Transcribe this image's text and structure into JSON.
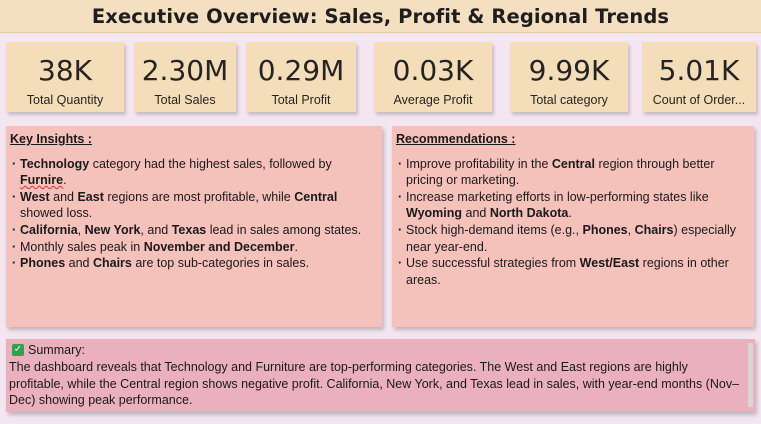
{
  "title": "Executive Overview: Sales, Profit & Regional Trends",
  "kpis": [
    {
      "value": "38K",
      "label": "Total Quantity"
    },
    {
      "value": "2.30M",
      "label": "Total Sales"
    },
    {
      "value": "0.29M",
      "label": "Total Profit"
    },
    {
      "value": "0.03K",
      "label": "Average Profit"
    },
    {
      "value": "9.99K",
      "label": "Total category"
    },
    {
      "value": "5.01K",
      "label": "Count of Order..."
    }
  ],
  "insights": {
    "heading": "Key Insights :",
    "items": [
      [
        "Technology",
        " category had the highest sales, followed by ",
        "Furnire",
        "."
      ],
      [
        "West",
        " and ",
        "East",
        " regions are most profitable, while ",
        "Central",
        " showed loss."
      ],
      [
        "California",
        ", ",
        "New York",
        ", and ",
        "Texas",
        " lead in sales among states."
      ],
      [
        "Monthly sales peak in ",
        "November and December",
        "."
      ],
      [
        "Phones",
        " and ",
        "Chairs",
        " are top sub-categories in sales."
      ]
    ]
  },
  "recommendations": {
    "heading": "Recommendations :",
    "items": [
      [
        "Improve profitability in the ",
        "Central",
        " region through better pricing or marketing."
      ],
      [
        "Increase marketing efforts in low-performing states like ",
        "Wyoming",
        " and ",
        "North Dakota",
        "."
      ],
      [
        "Stock high-demand items (e.g., ",
        "Phones",
        ", ",
        "Chairs",
        ") especially near year-end."
      ],
      [
        "Use successful strategies from ",
        "West/East",
        " regions in other areas."
      ]
    ]
  },
  "summary": {
    "icon": "check-mark-icon",
    "heading": "Summary:",
    "text": "The dashboard reveals that Technology and Furniture are top-performing categories. The West and East regions are highly profitable, while the Central region shows negative profit. California, New York, and Texas lead in sales, with year-end months (Nov–Dec) showing peak performance."
  },
  "colors": {
    "title_bg": "#f5dfc1",
    "kpi_bg": "#f3deb9",
    "card_bg": "#f4c1bb",
    "summary_bg": "#ebb0bd",
    "page_bg": "#f4e6f1"
  }
}
